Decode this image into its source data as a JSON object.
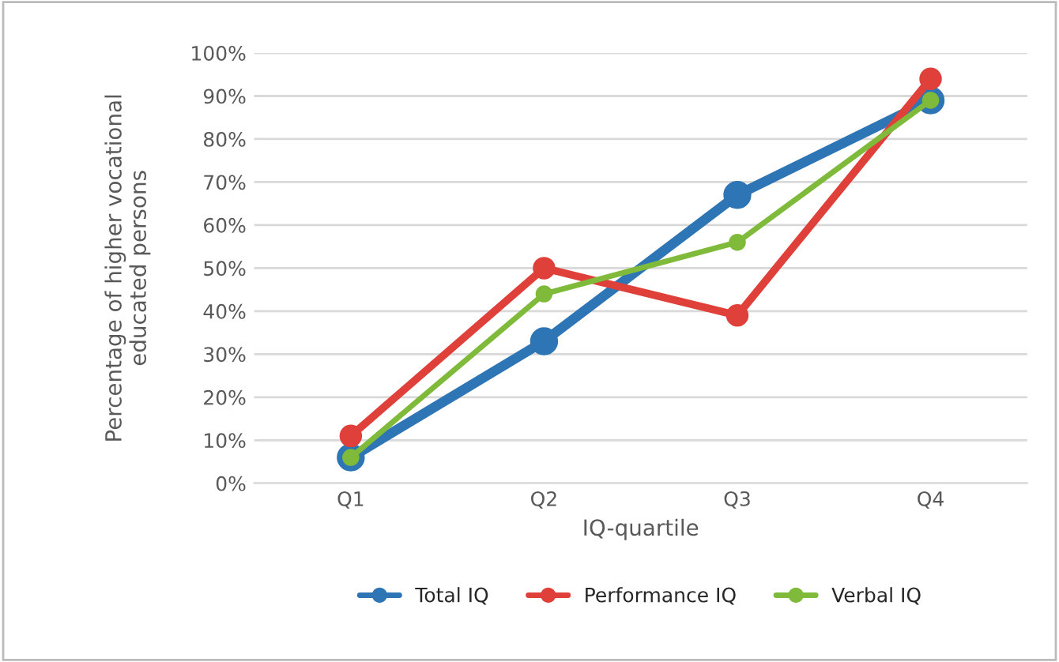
{
  "chart_data": {
    "type": "line",
    "xlabel": "IQ-quartile",
    "ylabel": "Percentage of higher vocational\neducated persons",
    "categories": [
      "Q1",
      "Q2",
      "Q3",
      "Q4"
    ],
    "series": [
      {
        "name": "Total IQ",
        "color": "#2e75b6",
        "values": [
          6,
          33,
          67,
          89
        ]
      },
      {
        "name": "Performance IQ",
        "color": "#e0403a",
        "values": [
          11,
          50,
          39,
          94
        ]
      },
      {
        "name": "Verbal IQ",
        "color": "#7fba3a",
        "values": [
          6,
          44,
          56,
          89
        ]
      }
    ],
    "ylim": [
      0,
      100
    ],
    "yticks": [
      {
        "value": 0,
        "label": "0%"
      },
      {
        "value": 10,
        "label": "10%"
      },
      {
        "value": 20,
        "label": "20%"
      },
      {
        "value": 30,
        "label": "30%"
      },
      {
        "value": 40,
        "label": "40%"
      },
      {
        "value": 50,
        "label": "50%"
      },
      {
        "value": 60,
        "label": "60%"
      },
      {
        "value": 70,
        "label": "70%"
      },
      {
        "value": 80,
        "label": "80%"
      },
      {
        "value": 90,
        "label": "90%"
      },
      {
        "value": 100,
        "label": "100%"
      }
    ],
    "grid": "y",
    "legend": "bottom",
    "marker": "circle",
    "line_style": "solid"
  }
}
